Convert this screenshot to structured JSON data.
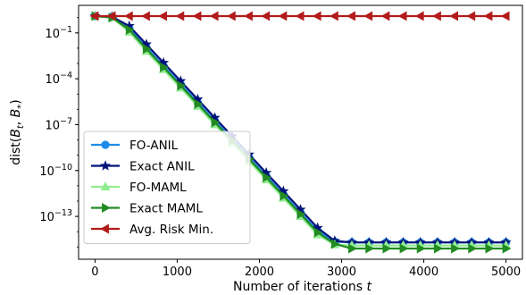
{
  "chart_data": {
    "type": "line",
    "xlabel": "Number of iterations t",
    "ylabel": "dist(B_t, B_*)",
    "x_scale": "linear",
    "y_scale": "log",
    "xlim": [
      -200,
      5200
    ],
    "ylim_log10": [
      -15.8,
      0.8
    ],
    "x_ticks": [
      0,
      1000,
      2000,
      3000,
      4000,
      5000
    ],
    "x_tick_labels": [
      "0",
      "1000",
      "2000",
      "3000",
      "4000",
      "5000"
    ],
    "y_ticks_log10": [
      -13,
      -10,
      -7,
      -4,
      -1
    ],
    "y_tick_labels": [
      "10^-13",
      "10^-10",
      "10^-7",
      "10^-4",
      "10^-1"
    ],
    "grid": false,
    "legend_position": "lower-left",
    "x": [
      0,
      208,
      417,
      625,
      833,
      1042,
      1250,
      1458,
      1667,
      1875,
      2083,
      2292,
      2500,
      2708,
      2917,
      3125,
      3333,
      3542,
      3750,
      3958,
      4167,
      4375,
      4583,
      4792,
      5000
    ],
    "series": [
      {
        "name": "FO-ANIL",
        "color": "#1f8be8",
        "marker": "circle",
        "values_log10": [
          0.1,
          0.05,
          -0.7,
          -1.95,
          -3.15,
          -4.35,
          -5.55,
          -6.75,
          -7.95,
          -9.15,
          -10.35,
          -11.55,
          -12.75,
          -13.95,
          -14.65,
          -14.7,
          -14.7,
          -14.7,
          -14.7,
          -14.7,
          -14.7,
          -14.7,
          -14.7,
          -14.7,
          -14.7
        ]
      },
      {
        "name": "Exact ANIL",
        "color": "#00137a",
        "marker": "star",
        "values_log10": [
          0.1,
          0.05,
          -0.55,
          -1.75,
          -2.95,
          -4.15,
          -5.35,
          -6.55,
          -7.75,
          -8.95,
          -10.15,
          -11.35,
          -12.55,
          -13.75,
          -14.6,
          -14.7,
          -14.7,
          -14.7,
          -14.7,
          -14.7,
          -14.7,
          -14.7,
          -14.7,
          -14.7,
          -14.7
        ]
      },
      {
        "name": "FO-MAML",
        "color": "#90ee90",
        "marker": "triangle-up",
        "values_log10": [
          0.1,
          0.0,
          -0.95,
          -2.2,
          -3.4,
          -4.6,
          -5.8,
          -7.0,
          -8.2,
          -9.4,
          -10.6,
          -11.8,
          -13.0,
          -14.2,
          -14.85,
          -14.9,
          -14.9,
          -14.9,
          -14.9,
          -14.9,
          -14.9,
          -14.9,
          -14.9,
          -14.9,
          -14.9
        ]
      },
      {
        "name": "Exact MAML",
        "color": "#228b22",
        "marker": "triangle-right",
        "values_log10": [
          0.1,
          0.0,
          -0.8,
          -2.05,
          -3.25,
          -4.45,
          -5.65,
          -6.85,
          -8.05,
          -9.25,
          -10.45,
          -11.65,
          -12.85,
          -14.05,
          -14.8,
          -15.1,
          -15.1,
          -15.1,
          -15.1,
          -15.1,
          -15.1,
          -15.1,
          -15.1,
          -15.1,
          -15.1
        ]
      },
      {
        "name": "Avg. Risk Min.",
        "color": "#b31b1b",
        "marker": "triangle-left",
        "values_log10": [
          0.1,
          0.1,
          0.1,
          0.1,
          0.1,
          0.1,
          0.1,
          0.1,
          0.1,
          0.1,
          0.1,
          0.1,
          0.1,
          0.1,
          0.1,
          0.1,
          0.1,
          0.1,
          0.1,
          0.1,
          0.1,
          0.1,
          0.1,
          0.1,
          0.1
        ]
      }
    ]
  }
}
